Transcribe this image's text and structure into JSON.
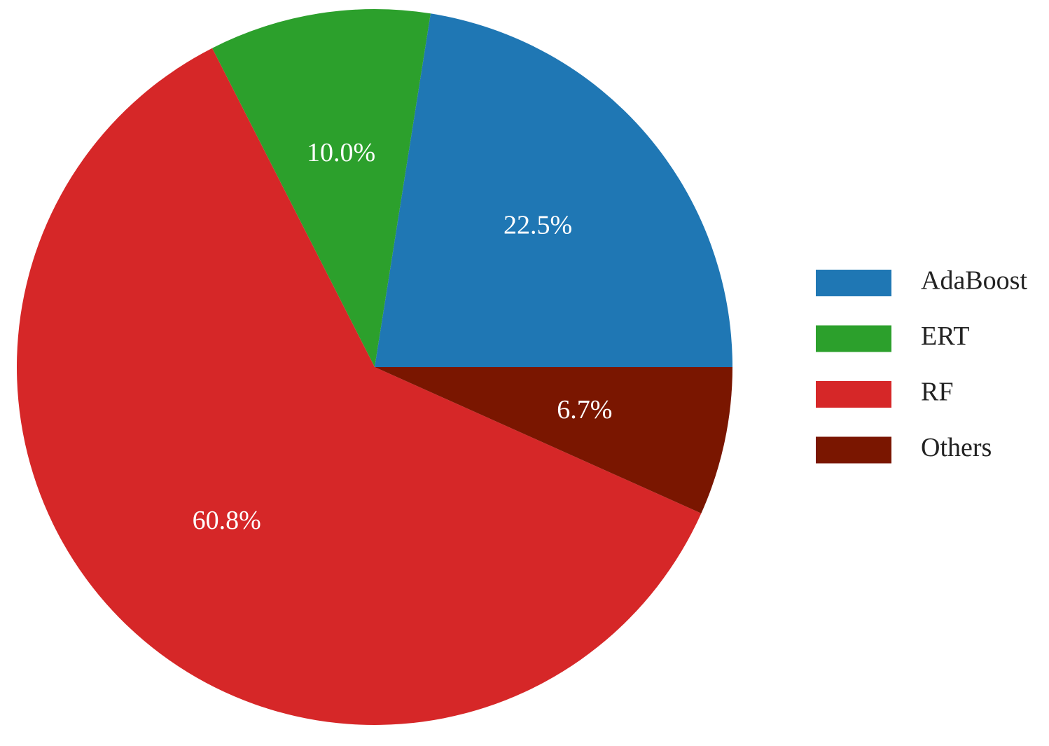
{
  "chart_data": {
    "type": "pie",
    "categories": [
      "AdaBoost",
      "ERT",
      "RF",
      "Others"
    ],
    "values": [
      22.5,
      10.0,
      60.8,
      6.7
    ],
    "value_labels": [
      "22.5%",
      "10.0%",
      "60.8%",
      "6.7%"
    ],
    "colors": [
      "#1f77b4",
      "#2ca02c",
      "#d62728",
      "#7a1600"
    ],
    "legend": "right"
  }
}
